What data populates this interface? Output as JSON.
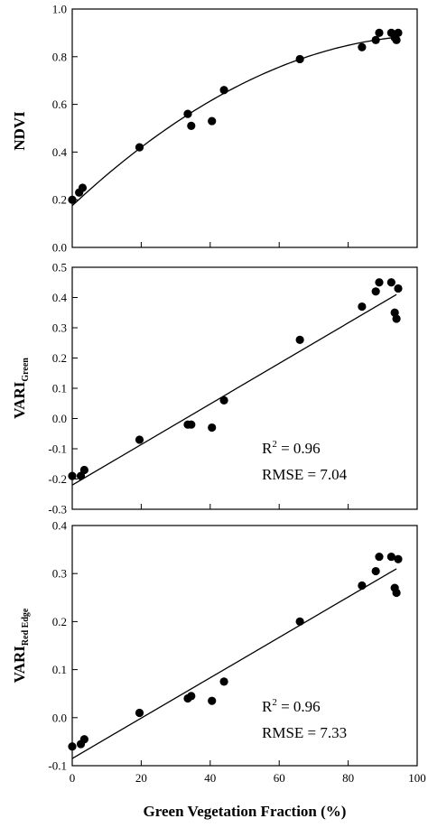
{
  "chart_data": [
    {
      "type": "scatter",
      "ylabel": "NDVI",
      "xlim": [
        0,
        100
      ],
      "ylim": [
        0.0,
        1.0
      ],
      "xticks": [
        "0",
        "20",
        "40",
        "60",
        "80",
        "100"
      ],
      "yticks": [
        "0.0",
        "0.2",
        "0.4",
        "0.6",
        "0.8",
        "1.0"
      ],
      "points": [
        {
          "x": 0,
          "y": 0.2
        },
        {
          "x": 2,
          "y": 0.23
        },
        {
          "x": 3,
          "y": 0.25
        },
        {
          "x": 19.5,
          "y": 0.42
        },
        {
          "x": 33.5,
          "y": 0.56
        },
        {
          "x": 34.5,
          "y": 0.51
        },
        {
          "x": 40.5,
          "y": 0.53
        },
        {
          "x": 44,
          "y": 0.66
        },
        {
          "x": 66,
          "y": 0.79
        },
        {
          "x": 84,
          "y": 0.84
        },
        {
          "x": 88,
          "y": 0.87
        },
        {
          "x": 89,
          "y": 0.9
        },
        {
          "x": 92.5,
          "y": 0.9
        },
        {
          "x": 93.5,
          "y": 0.88
        },
        {
          "x": 94,
          "y": 0.87
        },
        {
          "x": 94.5,
          "y": 0.9
        }
      ],
      "fit": {
        "type": "quadratic",
        "coefficients": [
          0.175,
          0.01353,
          -6.4e-05
        ]
      },
      "annotations": []
    },
    {
      "type": "scatter",
      "ylabel": "VARI",
      "ylabel_sub": "Green",
      "xlim": [
        0,
        100
      ],
      "ylim": [
        -0.3,
        0.5
      ],
      "xticks": [
        "0",
        "20",
        "40",
        "60",
        "80",
        "100"
      ],
      "yticks": [
        "-0.3",
        "-0.2",
        "-0.1",
        "0.0",
        "0.1",
        "0.2",
        "0.3",
        "0.4",
        "0.5"
      ],
      "points": [
        {
          "x": 0,
          "y": -0.19
        },
        {
          "x": 2.5,
          "y": -0.19
        },
        {
          "x": 3.5,
          "y": -0.17
        },
        {
          "x": 19.5,
          "y": -0.07
        },
        {
          "x": 33.5,
          "y": -0.02
        },
        {
          "x": 34.5,
          "y": -0.02
        },
        {
          "x": 40.5,
          "y": -0.03
        },
        {
          "x": 44,
          "y": 0.06
        },
        {
          "x": 66,
          "y": 0.26
        },
        {
          "x": 84,
          "y": 0.37
        },
        {
          "x": 88,
          "y": 0.42
        },
        {
          "x": 89,
          "y": 0.45
        },
        {
          "x": 92.5,
          "y": 0.45
        },
        {
          "x": 93.5,
          "y": 0.35
        },
        {
          "x": 94,
          "y": 0.33
        },
        {
          "x": 94.5,
          "y": 0.43
        }
      ],
      "fit": {
        "type": "linear",
        "x": [
          0,
          94
        ],
        "y": [
          -0.22,
          0.41
        ]
      },
      "annotations": [
        {
          "base": "R",
          "sup": "2",
          "rest": " = 0.96"
        },
        {
          "base": "RMSE = 7.04",
          "sup": "",
          "rest": ""
        }
      ]
    },
    {
      "type": "scatter",
      "ylabel": "VARI",
      "ylabel_sub": "Red Edge",
      "xlabel": "Green Vegetation Fraction (%)",
      "xlim": [
        0,
        100
      ],
      "ylim": [
        -0.1,
        0.4
      ],
      "xticks": [
        "0",
        "20",
        "40",
        "60",
        "80",
        "100"
      ],
      "yticks": [
        "-0.1",
        "0.0",
        "0.1",
        "0.2",
        "0.3",
        "0.4"
      ],
      "points": [
        {
          "x": 0,
          "y": -0.06
        },
        {
          "x": 2.5,
          "y": -0.055
        },
        {
          "x": 3.5,
          "y": -0.045
        },
        {
          "x": 19.5,
          "y": 0.01
        },
        {
          "x": 33.5,
          "y": 0.04
        },
        {
          "x": 34.5,
          "y": 0.045
        },
        {
          "x": 40.5,
          "y": 0.035
        },
        {
          "x": 44,
          "y": 0.075
        },
        {
          "x": 66,
          "y": 0.2
        },
        {
          "x": 84,
          "y": 0.275
        },
        {
          "x": 88,
          "y": 0.305
        },
        {
          "x": 89,
          "y": 0.335
        },
        {
          "x": 92.5,
          "y": 0.335
        },
        {
          "x": 93.5,
          "y": 0.27
        },
        {
          "x": 94,
          "y": 0.26
        },
        {
          "x": 94.5,
          "y": 0.33
        }
      ],
      "fit": {
        "type": "linear",
        "x": [
          0,
          94
        ],
        "y": [
          -0.085,
          0.31
        ]
      },
      "annotations": [
        {
          "base": "R",
          "sup": "2",
          "rest": " = 0.96"
        },
        {
          "base": "RMSE = 7.33",
          "sup": "",
          "rest": ""
        }
      ]
    }
  ]
}
